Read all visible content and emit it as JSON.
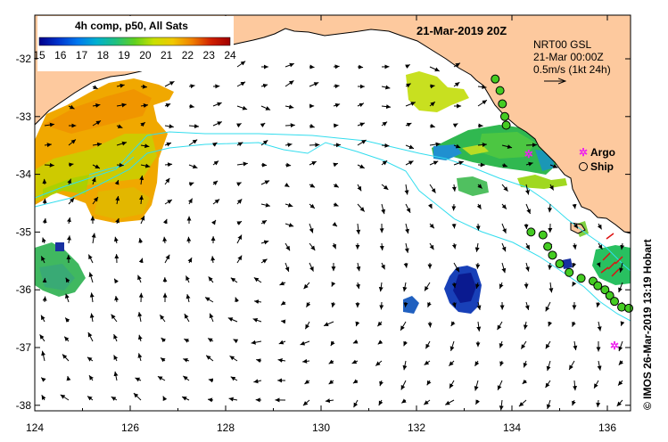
{
  "colorbar": {
    "title": "4h comp, p50, All Sats",
    "ticks": [
      "15",
      "16",
      "17",
      "18",
      "19",
      "20",
      "21",
      "22",
      "23",
      "24"
    ],
    "colors": [
      "#00008b",
      "#0033cc",
      "#0077ee",
      "#00b0d0",
      "#20c080",
      "#60d020",
      "#c8e000",
      "#f0c800",
      "#f08000",
      "#d02000",
      "#a00000"
    ]
  },
  "title": "21-Mar-2019 20Z",
  "current_note": {
    "line1": "NRT00 GSL",
    "line2": "21-Mar 00:00Z",
    "line3": "0.5m/s (1kt 24h)"
  },
  "legend": {
    "argo": "Argo",
    "ship": "Ship"
  },
  "axes": {
    "x_ticks": [
      "124",
      "126",
      "128",
      "130",
      "132",
      "134",
      "136"
    ],
    "y_ticks": [
      "-32",
      "-33",
      "-34",
      "-35",
      "-36",
      "-37",
      "-38"
    ],
    "xlim": [
      124,
      136.5
    ],
    "ylim": [
      -38.1,
      -31.35
    ]
  },
  "credit": "© IMOS 26-Mar-2019 13:19 Hobart",
  "colors": {
    "land": "#fdc99e",
    "ship": "#44cc22",
    "argo": "#ee22ee",
    "contour": "#33ddee"
  },
  "argo_floats": [
    {
      "lon": 134.35,
      "lat": -33.65
    },
    {
      "lon": 136.15,
      "lat": -36.97
    }
  ],
  "ship_track": [
    {
      "lon": 133.65,
      "lat": -32.35
    },
    {
      "lon": 133.75,
      "lat": -32.55
    },
    {
      "lon": 133.8,
      "lat": -32.78
    },
    {
      "lon": 133.85,
      "lat": -33.0
    },
    {
      "lon": 133.88,
      "lat": -33.15
    },
    {
      "lon": 134.4,
      "lat": -35.0
    },
    {
      "lon": 134.65,
      "lat": -35.05
    },
    {
      "lon": 134.75,
      "lat": -35.25
    },
    {
      "lon": 134.85,
      "lat": -35.4
    },
    {
      "lon": 135.0,
      "lat": -35.55
    },
    {
      "lon": 135.2,
      "lat": -35.7
    },
    {
      "lon": 135.45,
      "lat": -35.8
    },
    {
      "lon": 135.7,
      "lat": -35.85
    },
    {
      "lon": 135.8,
      "lat": -35.93
    },
    {
      "lon": 135.95,
      "lat": -36.0
    },
    {
      "lon": 136.05,
      "lat": -36.1
    },
    {
      "lon": 136.15,
      "lat": -36.2
    },
    {
      "lon": 136.3,
      "lat": -36.3
    },
    {
      "lon": 136.45,
      "lat": -36.32
    }
  ]
}
